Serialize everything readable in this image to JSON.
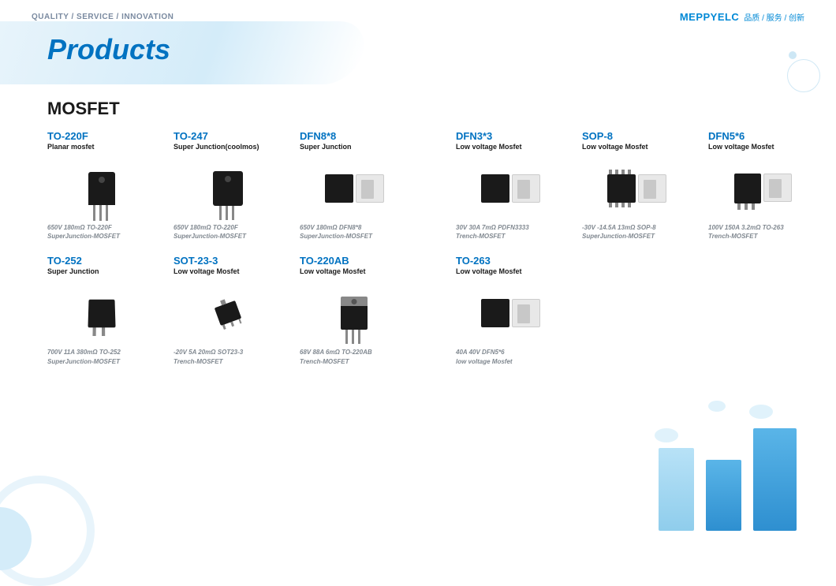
{
  "header": {
    "tagline": "QUALITY / SERVICE / INNOVATION",
    "logo": "MEPPYELC",
    "slogan": "品质 / 服务 / 创新"
  },
  "title": "Products",
  "section": "MOSFET",
  "left": [
    [
      {
        "pkg": "TO-220F",
        "sub": "Planar mosfet",
        "shape": "to220f",
        "spec": "650V 180mΩ TO-220F\nSuperJunction-MOSFET"
      },
      {
        "pkg": "TO-247",
        "sub": "Super Junction(coolmos)",
        "shape": "to247",
        "spec": "650V 180mΩ TO-220F\nSuperJunction-MOSFET"
      },
      {
        "pkg": "DFN8*8",
        "sub": "Super Junction",
        "shape": "dfn",
        "spec": "650V 180mΩ DFN8*8\nSuperJunction-MOSFET"
      }
    ],
    [
      {
        "pkg": "TO-252",
        "sub": "Super Junction",
        "shape": "to252",
        "spec": "700V 11A 380mΩ TO-252\nSuperJunction-MOSFET"
      },
      {
        "pkg": "SOT-23-3",
        "sub": "Low voltage Mosfet",
        "shape": "sot",
        "spec": "-20V 5A 20mΩ SOT23-3\nTrench-MOSFET"
      },
      {
        "pkg": "TO-220AB",
        "sub": "Low voltage Mosfet",
        "shape": "to220ab",
        "spec": "68V 88A 6mΩ TO-220AB\nTrench-MOSFET"
      }
    ]
  ],
  "right": [
    [
      {
        "pkg": "DFN3*3",
        "sub": "Low voltage Mosfet",
        "shape": "dfn",
        "spec": "30V 30A 7mΩ PDFN3333\nTrench-MOSFET"
      },
      {
        "pkg": "SOP-8",
        "sub": "Low voltage Mosfet",
        "shape": "sop",
        "spec": "-30V -14.5A 13mΩ SOP-8\nSuperJunction-MOSFET"
      },
      {
        "pkg": "DFN5*6",
        "sub": "Low voltage Mosfet",
        "shape": "to263",
        "spec": "100V 150A 3.2mΩ TO-263\nTrench-MOSFET"
      }
    ],
    [
      {
        "pkg": "TO-263",
        "sub": "Low voltage Mosfet",
        "shape": "dfn",
        "spec": "40A 40V DFN5*6\nlow voltage Mosfet"
      }
    ]
  ]
}
